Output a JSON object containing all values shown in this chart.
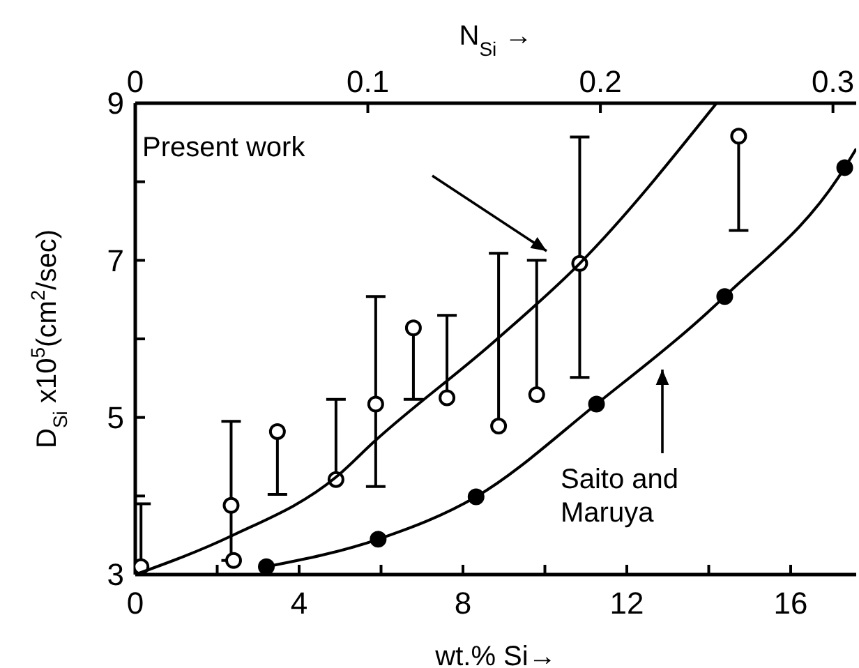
{
  "chart_data": {
    "type": "scatter",
    "xlabel": "wt.% Si→",
    "x2label": "N$_{Si}$ →",
    "ylabel": "D$_{Si}$ x10$^{5}$(cm$^{2}$/sec)",
    "xlim": [
      0,
      17.6
    ],
    "ylim": [
      3,
      9
    ],
    "x2lim": [
      0,
      0.31
    ],
    "xticks": [
      0,
      {
        "value": 2,
        "label": null
      },
      4,
      {
        "value": 6,
        "label": null
      },
      8,
      {
        "value": 10,
        "label": null
      },
      12,
      {
        "value": 14,
        "label": null
      },
      16
    ],
    "yticks": [
      3,
      {
        "value": 4,
        "label": null
      },
      5,
      {
        "value": 6,
        "label": null
      },
      7,
      {
        "value": 8,
        "label": null
      },
      9
    ],
    "x2ticks": [
      0,
      0.1,
      0.2,
      0.3
    ],
    "marker": "circle",
    "series": [
      {
        "color": "#000000",
        "x": [
          0.14,
          2.34,
          2.4,
          3.47,
          4.9,
          5.87,
          6.79,
          7.61,
          8.87,
          9.8,
          10.85,
          14.73
        ],
        "values": [
          3.1,
          3.88,
          3.18,
          4.82,
          4.21,
          5.17,
          6.14,
          5.25,
          4.89,
          5.29,
          6.96,
          8.58
        ],
        "errors": [
          [
            3.1,
            3.9
          ],
          [
            3.18,
            4.95
          ],
          null,
          [
            4.02,
            4.82
          ],
          [
            4.21,
            5.23
          ],
          [
            4.12,
            6.54
          ],
          [
            5.23,
            6.14
          ],
          [
            5.25,
            6.3
          ],
          [
            4.89,
            7.09
          ],
          [
            5.29,
            7.0
          ],
          [
            5.51,
            8.57
          ],
          [
            7.38,
            8.58
          ]
        ]
      },
      {
        "color": "#000000",
        "x": [
          3.2,
          5.93,
          8.32,
          11.26,
          14.39,
          17.32
        ],
        "values": [
          3.1,
          3.45,
          3.99,
          5.17,
          6.54,
          8.18
        ]
      },
      {
        "type": "line",
        "marker": "none",
        "color": "#000000",
        "x": [
          0,
          2.34,
          4.9,
          5.87,
          8.75,
          10.85,
          14.19
        ],
        "values": [
          3.0,
          3.49,
          4.24,
          4.71,
          5.96,
          6.96,
          9.0
        ]
      },
      {
        "type": "line",
        "marker": "none",
        "color": "#000000",
        "x": [
          3.2,
          5.93,
          8.32,
          11.26,
          14.39,
          17.32,
          17.6
        ],
        "values": [
          3.1,
          3.45,
          3.99,
          5.17,
          6.54,
          8.18,
          8.42
        ]
      }
    ],
    "annotations": [
      "Present work",
      "Saito and\nMaruya"
    ]
  }
}
